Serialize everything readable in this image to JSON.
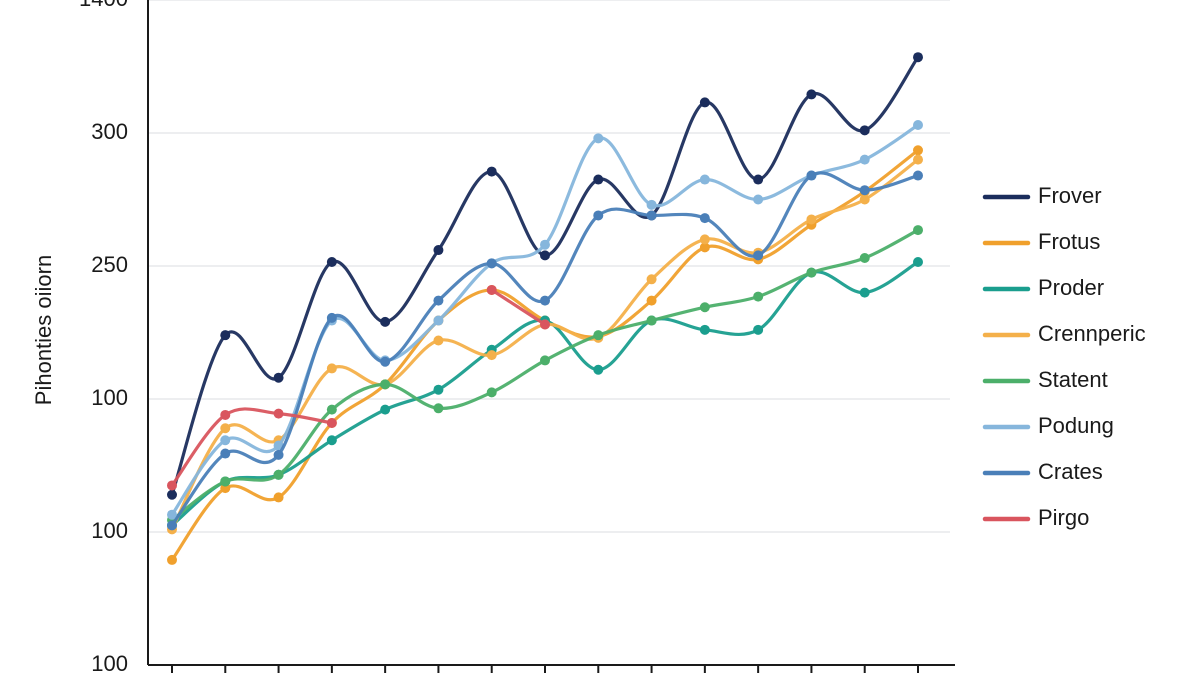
{
  "chart_data": {
    "type": "line",
    "y_label": "Pihonties oiiorn",
    "categories": [
      null,
      null,
      null,
      null,
      null,
      null,
      null,
      null,
      null,
      null,
      null,
      null,
      null,
      null,
      null
    ],
    "ylim": [
      0,
      5
    ],
    "yticks": [
      {
        "value": 0,
        "label": "100"
      },
      {
        "value": 1,
        "label": "100"
      },
      {
        "value": 2,
        "label": "100"
      },
      {
        "value": 3,
        "label": "250"
      },
      {
        "value": 4,
        "label": "300"
      },
      {
        "value": 5,
        "label": "1400"
      }
    ],
    "grid": true,
    "legend": "right",
    "series": [
      {
        "name": "Frover",
        "color": "#1b2d5c",
        "values": [
          1.28,
          2.48,
          2.16,
          3.03,
          2.58,
          3.12,
          3.71,
          3.08,
          3.65,
          3.38,
          4.23,
          3.65,
          4.29,
          4.02,
          4.57
        ]
      },
      {
        "name": "Frotus",
        "color": "#f0a02c",
        "values": [
          0.79,
          1.33,
          1.26,
          1.82,
          2.11,
          2.59,
          2.82,
          2.59,
          2.47,
          2.74,
          3.14,
          3.05,
          3.31,
          3.56,
          3.87
        ]
      },
      {
        "name": "Proder",
        "color": "#1a9e8e",
        "values": [
          1.05,
          1.38,
          1.43,
          1.69,
          1.92,
          2.07,
          2.37,
          2.59,
          2.22,
          2.59,
          2.52,
          2.52,
          2.95,
          2.8,
          3.03
        ]
      },
      {
        "name": "Crennperic",
        "color": "#f4b04a",
        "values": [
          1.02,
          1.78,
          1.69,
          2.23,
          2.11,
          2.44,
          2.33,
          2.56,
          2.46,
          2.9,
          3.2,
          3.1,
          3.35,
          3.5,
          3.8
        ]
      },
      {
        "name": "Statent",
        "color": "#4caf6a",
        "values": [
          1.09,
          1.38,
          1.43,
          1.92,
          2.11,
          1.93,
          2.05,
          2.29,
          2.48,
          2.59,
          2.69,
          2.77,
          2.95,
          3.06,
          3.27
        ]
      },
      {
        "name": "Podung",
        "color": "#86b6dc",
        "values": [
          1.13,
          1.69,
          1.65,
          2.59,
          2.29,
          2.59,
          3.02,
          3.16,
          3.96,
          3.46,
          3.65,
          3.5,
          3.68,
          3.8,
          4.06
        ]
      },
      {
        "name": "Crates",
        "color": "#4a7fb8",
        "values": [
          1.05,
          1.59,
          1.58,
          2.61,
          2.28,
          2.74,
          3.02,
          2.74,
          3.38,
          3.38,
          3.36,
          3.08,
          3.68,
          3.57,
          3.68
        ]
      },
      {
        "name": "Pirgo",
        "color": "#d9555e",
        "values": [
          1.35,
          1.88,
          1.89,
          1.82,
          null,
          null,
          2.82,
          2.56,
          null,
          null,
          null,
          null,
          null,
          null,
          null
        ]
      }
    ]
  }
}
